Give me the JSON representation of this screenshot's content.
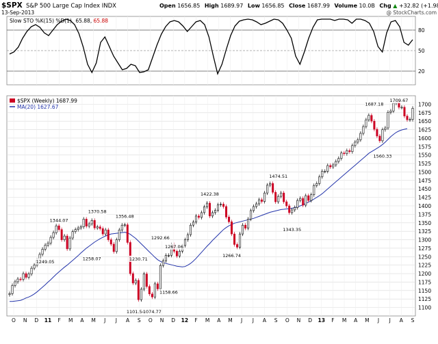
{
  "header": {
    "ticker": "$SPX",
    "name": "S&P 500 Large Cap Index",
    "exchange": "INDX",
    "date": "13-Sep-2013",
    "open_label": "Open",
    "open": "1656.85",
    "high_label": "High",
    "high": "1689.97",
    "low_label": "Low",
    "low": "1656.85",
    "close_label": "Close",
    "close": "1687.99",
    "volume_label": "Volume",
    "volume": "10.0B",
    "chg_label": "Chg",
    "chg": "+32.82 (+1.98%)",
    "chg_arrow": "▲",
    "watermark": "@ StockCharts.com"
  },
  "colors": {
    "up_candle": "#ffffff",
    "down_candle": "#cc0022",
    "ma_line": "#2233aa",
    "stoch_line": "#000000",
    "d_value": "#cc0000",
    "grid": "#d9d9d9",
    "axis": "#333333"
  },
  "chart_data": [
    {
      "type": "line",
      "title": "Slow STO %K(15) %D(1)",
      "legend": {
        "label": "Slow STO %K(15) %D(1)",
        "k_value": "65.88",
        "d_value": "65.88"
      },
      "ylim": [
        0,
        100
      ],
      "yticks": [
        20,
        50,
        80
      ],
      "reference_lines": [
        20,
        50,
        80
      ],
      "series": [
        {
          "values": [
            45,
            48,
            55,
            68,
            78,
            85,
            88,
            84,
            76,
            72,
            80,
            88,
            93,
            96,
            94,
            88,
            75,
            55,
            30,
            18,
            32,
            62,
            70,
            56,
            42,
            32,
            22,
            24,
            30,
            28,
            18,
            19,
            22,
            40,
            58,
            74,
            85,
            92,
            94,
            92,
            86,
            78,
            85,
            92,
            94,
            88,
            70,
            42,
            16,
            30,
            52,
            72,
            86,
            93,
            95,
            96,
            95,
            92,
            88,
            90,
            93,
            96,
            95,
            90,
            80,
            68,
            42,
            30,
            48,
            68,
            84,
            95,
            96,
            96,
            96,
            94,
            96,
            96,
            95,
            90,
            96,
            96,
            94,
            90,
            78,
            56,
            48,
            76,
            92,
            94,
            85,
            62,
            58,
            66
          ]
        }
      ]
    },
    {
      "type": "candlestick",
      "title": "$SPX (Weekly) 1687.99",
      "legend": [
        {
          "label": "$SPX (Weekly) 1687.99"
        },
        {
          "label": "MA(20) 1627.67"
        }
      ],
      "ylim": [
        1075,
        1725
      ],
      "yticks": [
        1100,
        1125,
        1150,
        1175,
        1200,
        1225,
        1250,
        1275,
        1300,
        1325,
        1350,
        1375,
        1400,
        1425,
        1450,
        1475,
        1500,
        1525,
        1550,
        1575,
        1600,
        1625,
        1650,
        1675,
        1700
      ],
      "x_labels": [
        "O",
        "N",
        "D",
        "11",
        "F",
        "M",
        "A",
        "M",
        "J",
        "J",
        "A",
        "S",
        "O",
        "N",
        "D",
        "12",
        "F",
        "M",
        "A",
        "M",
        "J",
        "J",
        "A",
        "S",
        "O",
        "N",
        "D",
        "13",
        "F",
        "M",
        "A",
        "M",
        "J",
        "J",
        "A",
        "S"
      ],
      "series": [
        {
          "name": "$SPX (Weekly)",
          "close": [
            1141,
            1165,
            1176,
            1184,
            1183,
            1200,
            1189,
            1199,
            1216,
            1225,
            1240,
            1257,
            1272,
            1284,
            1290,
            1307,
            1321,
            1341,
            1330,
            1300,
            1311,
            1273,
            1305,
            1324,
            1330,
            1335,
            1338,
            1361,
            1340,
            1347,
            1357,
            1335,
            1338,
            1333,
            1317,
            1329,
            1300,
            1287,
            1265,
            1300,
            1329,
            1343,
            1344,
            1292,
            1200,
            1172,
            1180,
            1123,
            1154,
            1199,
            1162,
            1140,
            1131,
            1170,
            1155,
            1224,
            1238,
            1254,
            1254,
            1285,
            1266,
            1252,
            1266,
            1283,
            1300,
            1315,
            1343,
            1352,
            1370,
            1366,
            1380,
            1397,
            1408,
            1370,
            1380,
            1387,
            1403,
            1405,
            1398,
            1367,
            1353,
            1317,
            1286,
            1278,
            1317,
            1343,
            1334,
            1361,
            1386,
            1398,
            1406,
            1418,
            1413,
            1438,
            1461,
            1466,
            1440,
            1412,
            1428,
            1438,
            1412,
            1400,
            1380,
            1388,
            1395,
            1416,
            1422,
            1402,
            1430,
            1416,
            1433,
            1460,
            1466,
            1486,
            1502,
            1502,
            1519,
            1515,
            1521,
            1531,
            1540,
            1556,
            1554,
            1563,
            1560,
            1578,
            1588,
            1595,
            1614,
            1634,
            1654,
            1667,
            1650,
            1626,
            1606,
            1592,
            1625,
            1630,
            1676,
            1680,
            1703,
            1709,
            1691,
            1691,
            1665,
            1654,
            1655,
            1688
          ],
          "annotations": [
            {
              "index": 13,
              "value": 1249.05,
              "label": "1249.05"
            },
            {
              "index": 18,
              "value": 1344.07,
              "label": "1344.07"
            },
            {
              "index": 30,
              "value": 1258.07,
              "label": "1258.07"
            },
            {
              "index": 32,
              "value": 1370.58,
              "label": "1370.58"
            },
            {
              "index": 42,
              "value": 1356.48,
              "label": "1356.48"
            },
            {
              "index": 46,
              "value": 1101.54,
              "label": "1101.54"
            },
            {
              "index": 47,
              "value": 1230.71,
              "label": "1230.71"
            },
            {
              "index": 52,
              "value": 1074.77,
              "label": "1074.77"
            },
            {
              "index": 55,
              "value": 1292.66,
              "label": "1292.66"
            },
            {
              "index": 58,
              "value": 1158.66,
              "label": "1158.66"
            },
            {
              "index": 60,
              "value": 1267.06,
              "label": "1267.06"
            },
            {
              "index": 73,
              "value": 1422.38,
              "label": "1422.38"
            },
            {
              "index": 81,
              "value": 1266.74,
              "label": "1266.74"
            },
            {
              "index": 98,
              "value": 1474.51,
              "label": "1474.51"
            },
            {
              "index": 103,
              "value": 1343.35,
              "label": "1343.35"
            },
            {
              "index": 133,
              "value": 1687.18,
              "label": "1687.18"
            },
            {
              "index": 136,
              "value": 1560.33,
              "label": "1560.33"
            },
            {
              "index": 142,
              "value": 1709.67,
              "label": "1709.67"
            }
          ]
        },
        {
          "name": "MA(20)",
          "values": [
            1118,
            1118,
            1119,
            1120,
            1121,
            1124,
            1128,
            1131,
            1135,
            1140,
            1146,
            1153,
            1160,
            1167,
            1175,
            1182,
            1190,
            1198,
            1205,
            1212,
            1219,
            1225,
            1232,
            1239,
            1246,
            1253,
            1261,
            1268,
            1275,
            1281,
            1287,
            1293,
            1298,
            1303,
            1307,
            1311,
            1314,
            1317,
            1318,
            1319,
            1320,
            1321,
            1322,
            1320,
            1316,
            1310,
            1304,
            1296,
            1288,
            1280,
            1272,
            1264,
            1256,
            1248,
            1241,
            1236,
            1232,
            1230,
            1228,
            1226,
            1224,
            1222,
            1221,
            1220,
            1221,
            1225,
            1230,
            1237,
            1245,
            1254,
            1263,
            1272,
            1281,
            1289,
            1298,
            1306,
            1314,
            1322,
            1330,
            1336,
            1341,
            1345,
            1349,
            1351,
            1353,
            1355,
            1357,
            1359,
            1361,
            1363,
            1366,
            1369,
            1372,
            1375,
            1378,
            1381,
            1383,
            1385,
            1387,
            1389,
            1390,
            1391,
            1392,
            1393,
            1395,
            1397,
            1400,
            1403,
            1407,
            1411,
            1415,
            1420,
            1425,
            1430,
            1436,
            1443,
            1450,
            1457,
            1464,
            1471,
            1478,
            1485,
            1492,
            1499,
            1506,
            1513,
            1520,
            1527,
            1534,
            1541,
            1548,
            1555,
            1560,
            1565,
            1570,
            1575,
            1581,
            1588,
            1596,
            1604,
            1611,
            1617,
            1621,
            1624,
            1626,
            1628
          ]
        }
      ]
    }
  ]
}
